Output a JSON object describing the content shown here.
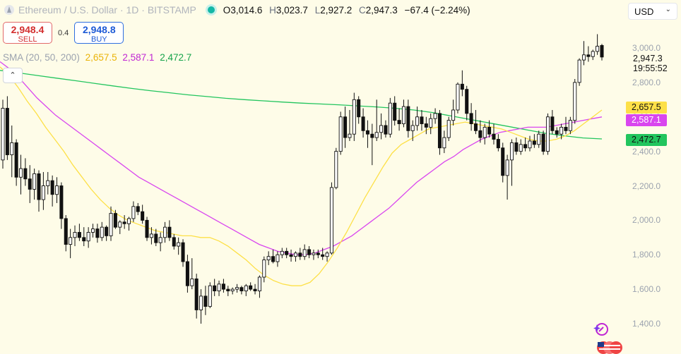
{
  "header": {
    "symbol": "Ethereum / U.S. Dollar · 1D · BITSTAMP",
    "ohlc": {
      "o_label": "O",
      "o": "3,014.6",
      "h_label": "H",
      "h": "3,023.7",
      "l_label": "L",
      "l": "2,927.2",
      "c_label": "C",
      "c": "2,947.3",
      "change": "−67.4 (−2.24%)"
    }
  },
  "trade": {
    "sell_price": "2,948.4",
    "sell_label": "SELL",
    "spread": "0.4",
    "buy_price": "2,948.8",
    "buy_label": "BUY"
  },
  "sma": {
    "label": "SMA (20, 50, 200)",
    "v20": "2,657.5",
    "v50": "2,587.1",
    "v200": "2,472.7"
  },
  "currency": "USD",
  "price_axis": {
    "current": "2,947.3",
    "countdown": "19:55:52"
  },
  "colors": {
    "sma20": "#fde047",
    "sma50": "#d946ef",
    "sma200": "#22c55e",
    "sma20_text": "#eab308",
    "sma50_text": "#c026d3",
    "sma200_text": "#16a34a"
  },
  "chart_data": {
    "type": "candlestick",
    "y_ticks": [
      "3,000.0",
      "2,800.0",
      "2,600.0",
      "2,400.0",
      "2,200.0",
      "2,000.0",
      "1,800.0",
      "1,600.0",
      "1,400.0"
    ],
    "y_tick_values": [
      3000,
      2800,
      2600,
      2400,
      2200,
      2000,
      1800,
      1600,
      1400
    ],
    "ylim": [
      1300,
      3100
    ],
    "candles": [
      [
        2350,
        2700,
        2300,
        2650
      ],
      [
        2650,
        2720,
        2350,
        2380
      ],
      [
        2380,
        2550,
        2250,
        2450
      ],
      [
        2450,
        2470,
        2200,
        2250
      ],
      [
        2250,
        2380,
        2150,
        2300
      ],
      [
        2300,
        2360,
        2200,
        2240
      ],
      [
        2240,
        2320,
        2100,
        2180
      ],
      [
        2180,
        2300,
        2120,
        2270
      ],
      [
        2270,
        2290,
        2050,
        2120
      ],
      [
        2120,
        2280,
        2060,
        2200
      ],
      [
        2200,
        2280,
        2150,
        2230
      ],
      [
        2230,
        2260,
        2080,
        2150
      ],
      [
        2150,
        2250,
        2100,
        2200
      ],
      [
        2200,
        2220,
        1950,
        2010
      ],
      [
        2010,
        2030,
        1820,
        1860
      ],
      [
        1860,
        1950,
        1780,
        1900
      ],
      [
        1900,
        1970,
        1850,
        1930
      ],
      [
        1930,
        1980,
        1880,
        1900
      ],
      [
        1900,
        1960,
        1850,
        1880
      ],
      [
        1880,
        1960,
        1840,
        1930
      ],
      [
        1930,
        1980,
        1900,
        1950
      ],
      [
        1950,
        1980,
        1870,
        1900
      ],
      [
        1900,
        1990,
        1880,
        1960
      ],
      [
        1960,
        1970,
        1880,
        1910
      ],
      [
        1910,
        2080,
        1880,
        2040
      ],
      [
        2040,
        2060,
        1950,
        1960
      ],
      [
        1960,
        2000,
        1920,
        1990
      ],
      [
        1990,
        2030,
        1950,
        1980
      ],
      [
        1980,
        2020,
        1940,
        2010
      ],
      [
        2010,
        2110,
        1990,
        2080
      ],
      [
        2080,
        2100,
        2030,
        2050
      ],
      [
        2050,
        2090,
        1980,
        2000
      ],
      [
        2000,
        2020,
        1880,
        1900
      ],
      [
        1900,
        1960,
        1860,
        1920
      ],
      [
        1920,
        1950,
        1850,
        1870
      ],
      [
        1870,
        1930,
        1820,
        1900
      ],
      [
        1900,
        1990,
        1870,
        1960
      ],
      [
        1960,
        2000,
        1880,
        1900
      ],
      [
        1900,
        1920,
        1830,
        1850
      ],
      [
        1850,
        1900,
        1800,
        1870
      ],
      [
        1870,
        1890,
        1730,
        1760
      ],
      [
        1760,
        1800,
        1580,
        1620
      ],
      [
        1620,
        1780,
        1600,
        1660
      ],
      [
        1660,
        1690,
        1430,
        1480
      ],
      [
        1480,
        1600,
        1400,
        1560
      ],
      [
        1560,
        1620,
        1450,
        1500
      ],
      [
        1500,
        1640,
        1490,
        1620
      ],
      [
        1620,
        1660,
        1560,
        1590
      ],
      [
        1590,
        1650,
        1560,
        1630
      ],
      [
        1630,
        1660,
        1580,
        1600
      ],
      [
        1600,
        1620,
        1560,
        1590
      ],
      [
        1590,
        1610,
        1570,
        1600
      ],
      [
        1600,
        1630,
        1580,
        1610
      ],
      [
        1610,
        1620,
        1570,
        1590
      ],
      [
        1590,
        1630,
        1560,
        1620
      ],
      [
        1620,
        1640,
        1590,
        1600
      ],
      [
        1600,
        1630,
        1570,
        1590
      ],
      [
        1590,
        1680,
        1550,
        1670
      ],
      [
        1670,
        1790,
        1640,
        1770
      ],
      [
        1770,
        1820,
        1740,
        1790
      ],
      [
        1790,
        1830,
        1750,
        1760
      ],
      [
        1760,
        1820,
        1730,
        1800
      ],
      [
        1800,
        1840,
        1780,
        1820
      ],
      [
        1820,
        1840,
        1780,
        1800
      ],
      [
        1800,
        1830,
        1760,
        1790
      ],
      [
        1790,
        1820,
        1760,
        1810
      ],
      [
        1810,
        1840,
        1770,
        1790
      ],
      [
        1790,
        1860,
        1770,
        1830
      ],
      [
        1830,
        1850,
        1780,
        1800
      ],
      [
        1800,
        1830,
        1770,
        1810
      ],
      [
        1810,
        1830,
        1780,
        1800
      ],
      [
        1800,
        1840,
        1770,
        1790
      ],
      [
        1790,
        1820,
        1760,
        1810
      ],
      [
        1810,
        2220,
        1800,
        2190
      ],
      [
        2190,
        2420,
        2180,
        2400
      ],
      [
        2400,
        2630,
        2380,
        2600
      ],
      [
        2600,
        2660,
        2420,
        2480
      ],
      [
        2480,
        2640,
        2460,
        2500
      ],
      [
        2500,
        2740,
        2460,
        2700
      ],
      [
        2700,
        2720,
        2560,
        2600
      ],
      [
        2600,
        2650,
        2480,
        2520
      ],
      [
        2520,
        2580,
        2420,
        2500
      ],
      [
        2500,
        2560,
        2320,
        2480
      ],
      [
        2480,
        2700,
        2460,
        2510
      ],
      [
        2510,
        2620,
        2470,
        2550
      ],
      [
        2550,
        2580,
        2480,
        2500
      ],
      [
        2500,
        2710,
        2480,
        2680
      ],
      [
        2680,
        2720,
        2550,
        2580
      ],
      [
        2580,
        2650,
        2520,
        2560
      ],
      [
        2560,
        2700,
        2540,
        2660
      ],
      [
        2660,
        2700,
        2480,
        2520
      ],
      [
        2520,
        2580,
        2460,
        2550
      ],
      [
        2550,
        2660,
        2520,
        2600
      ],
      [
        2600,
        2640,
        2520,
        2560
      ],
      [
        2560,
        2600,
        2500,
        2540
      ],
      [
        2540,
        2620,
        2500,
        2590
      ],
      [
        2590,
        2650,
        2560,
        2620
      ],
      [
        2620,
        2640,
        2380,
        2420
      ],
      [
        2420,
        2520,
        2390,
        2480
      ],
      [
        2480,
        2600,
        2460,
        2580
      ],
      [
        2580,
        2700,
        2550,
        2640
      ],
      [
        2640,
        2800,
        2620,
        2790
      ],
      [
        2790,
        2870,
        2720,
        2760
      ],
      [
        2760,
        2780,
        2580,
        2620
      ],
      [
        2620,
        2680,
        2520,
        2560
      ],
      [
        2560,
        2640,
        2500,
        2520
      ],
      [
        2520,
        2580,
        2450,
        2480
      ],
      [
        2480,
        2560,
        2440,
        2540
      ],
      [
        2540,
        2580,
        2480,
        2500
      ],
      [
        2500,
        2560,
        2440,
        2470
      ],
      [
        2470,
        2500,
        2400,
        2420
      ],
      [
        2420,
        2450,
        2220,
        2260
      ],
      [
        2260,
        2380,
        2120,
        2350
      ],
      [
        2350,
        2470,
        2200,
        2450
      ],
      [
        2450,
        2480,
        2380,
        2400
      ],
      [
        2400,
        2470,
        2380,
        2440
      ],
      [
        2440,
        2480,
        2400,
        2420
      ],
      [
        2420,
        2490,
        2400,
        2460
      ],
      [
        2460,
        2500,
        2420,
        2440
      ],
      [
        2440,
        2520,
        2420,
        2500
      ],
      [
        2500,
        2520,
        2380,
        2400
      ],
      [
        2400,
        2620,
        2380,
        2600
      ],
      [
        2600,
        2640,
        2500,
        2520
      ],
      [
        2520,
        2540,
        2480,
        2500
      ],
      [
        2500,
        2560,
        2470,
        2540
      ],
      [
        2540,
        2600,
        2500,
        2520
      ],
      [
        2520,
        2600,
        2500,
        2580
      ],
      [
        2580,
        2820,
        2560,
        2800
      ],
      [
        2800,
        2940,
        2780,
        2930
      ],
      [
        2930,
        3040,
        2900,
        2960
      ],
      [
        2960,
        3010,
        2920,
        2950
      ],
      [
        2950,
        2990,
        2930,
        2980
      ],
      [
        2980,
        3080,
        2960,
        3010
      ],
      [
        3014.6,
        3023.7,
        2927.2,
        2947.3
      ]
    ],
    "sma20": [
      2890,
      2840,
      2770,
      2690,
      2620,
      2540,
      2470,
      2400,
      2320,
      2250,
      2180,
      2120,
      2070,
      2030,
      2000,
      1980,
      1960,
      1940,
      1930,
      1920,
      1910,
      1910,
      1900,
      1900,
      1880,
      1850,
      1810,
      1770,
      1720,
      1680,
      1650,
      1630,
      1620,
      1620,
      1640,
      1690,
      1760,
      1840,
      1930,
      2030,
      2130,
      2220,
      2310,
      2390,
      2440,
      2470,
      2500,
      2530,
      2540,
      2550,
      2560,
      2570,
      2560,
      2550,
      2540,
      2530,
      2510,
      2490,
      2470,
      2460,
      2460,
      2470,
      2490,
      2520,
      2560,
      2600,
      2640
    ],
    "sma50": [
      2920,
      2880,
      2830,
      2770,
      2710,
      2660,
      2610,
      2570,
      2530,
      2490,
      2450,
      2410,
      2370,
      2330,
      2290,
      2250,
      2220,
      2190,
      2160,
      2130,
      2100,
      2070,
      2040,
      2010,
      1980,
      1950,
      1920,
      1890,
      1860,
      1840,
      1820,
      1810,
      1800,
      1800,
      1810,
      1830,
      1850,
      1880,
      1910,
      1950,
      1990,
      2030,
      2070,
      2120,
      2170,
      2220,
      2260,
      2300,
      2340,
      2370,
      2410,
      2440,
      2470,
      2490,
      2510,
      2520,
      2530,
      2540,
      2540,
      2540,
      2550,
      2560,
      2570,
      2580,
      2590,
      2600
    ],
    "sma200": [
      2870,
      2855,
      2840,
      2825,
      2810,
      2795,
      2780,
      2765,
      2752,
      2740,
      2728,
      2718,
      2708,
      2700,
      2693,
      2686,
      2680,
      2675,
      2670,
      2664,
      2658,
      2650,
      2640,
      2625,
      2605,
      2585,
      2565,
      2545,
      2525,
      2505,
      2490,
      2478,
      2472
    ]
  }
}
